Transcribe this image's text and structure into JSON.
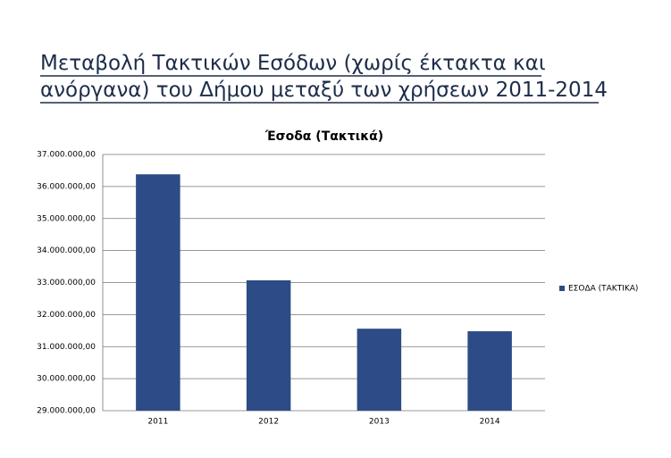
{
  "heading": [
    "Μεταβολή Τακτικών Εσόδων (χωρίς έκτακτα και",
    "ανόργανα) του Δήμου μεταξύ των χρήσεων 2011-2014"
  ],
  "chart_data": {
    "type": "bar",
    "title": "Έσοδα (Τακτικά)",
    "categories": [
      "2011",
      "2012",
      "2013",
      "2014"
    ],
    "series": [
      {
        "name": "ΕΣΟΔΑ (ΤΑΚΤΙΚΑ)",
        "color": "#2d4b86",
        "values": [
          36380000,
          33070000,
          31560000,
          31480000
        ]
      }
    ],
    "ylim": [
      29000000,
      37000000
    ],
    "yticks": [
      {
        "value": 29000000,
        "label": "29.000.000,00"
      },
      {
        "value": 30000000,
        "label": "30.000.000,00"
      },
      {
        "value": 31000000,
        "label": "31.000.000,00"
      },
      {
        "value": 32000000,
        "label": "32.000.000,00"
      },
      {
        "value": 33000000,
        "label": "33.000.000,00"
      },
      {
        "value": 34000000,
        "label": "34.000.000,00"
      },
      {
        "value": 35000000,
        "label": "35.000.000,00"
      },
      {
        "value": 36000000,
        "label": "36.000.000,00"
      },
      {
        "value": 37000000,
        "label": "37.000.000,00"
      }
    ],
    "grid": true,
    "legend": "right"
  }
}
